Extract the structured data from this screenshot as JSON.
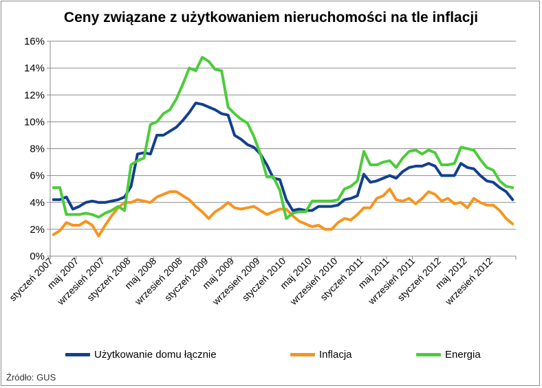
{
  "chart_data": {
    "type": "line",
    "title": "Ceny związane z użytkowaniem nieruchomości na tle inflacji",
    "xlabel": "",
    "ylabel": "",
    "ylim": [
      0,
      16
    ],
    "yticks": [
      "0%",
      "2%",
      "4%",
      "6%",
      "8%",
      "10%",
      "12%",
      "14%",
      "16%"
    ],
    "grid": true,
    "legend": "bottom",
    "x_tick_labels": [
      {
        "index": 0,
        "label": "styczeń 2007"
      },
      {
        "index": 4,
        "label": "maj 2007"
      },
      {
        "index": 8,
        "label": "wrzesień 2007"
      },
      {
        "index": 12,
        "label": "styczeń 2008"
      },
      {
        "index": 16,
        "label": "maj 2008"
      },
      {
        "index": 20,
        "label": "wrzesień 2008"
      },
      {
        "index": 24,
        "label": "styczeń 2009"
      },
      {
        "index": 28,
        "label": "maj 2009"
      },
      {
        "index": 32,
        "label": "wrzesień 2009"
      },
      {
        "index": 36,
        "label": "styczeń 2010"
      },
      {
        "index": 40,
        "label": "maj 2010"
      },
      {
        "index": 44,
        "label": "wrzesień 2010"
      },
      {
        "index": 48,
        "label": "styczeń 2011"
      },
      {
        "index": 52,
        "label": "maj 2011"
      },
      {
        "index": 56,
        "label": "wrzesień 2011"
      },
      {
        "index": 60,
        "label": "styczeń 2012"
      },
      {
        "index": 64,
        "label": "maj 2012"
      },
      {
        "index": 68,
        "label": "wrzesień 2012"
      }
    ],
    "months": 72,
    "series": [
      {
        "name": "Użytkowanie domu łącznie",
        "color": "#123f8f",
        "values": [
          4.2,
          4.2,
          4.4,
          3.5,
          3.7,
          4.0,
          4.1,
          4.0,
          4.0,
          4.1,
          4.2,
          4.4,
          5.2,
          7.6,
          7.7,
          7.6,
          9.0,
          9.0,
          9.3,
          9.6,
          10.1,
          10.7,
          11.4,
          11.3,
          11.1,
          10.9,
          10.6,
          10.5,
          9.0,
          8.7,
          8.3,
          8.1,
          7.6,
          6.8,
          5.8,
          5.7,
          4.2,
          3.4,
          3.5,
          3.4,
          3.4,
          3.7,
          3.7,
          3.7,
          3.8,
          4.2,
          4.3,
          4.5,
          6.1,
          5.5,
          5.6,
          5.8,
          6.0,
          5.8,
          6.3,
          6.6,
          6.7,
          6.7,
          6.9,
          6.7,
          6.0,
          6.0,
          6.0,
          6.9,
          6.6,
          6.5,
          6.0,
          5.6,
          5.5,
          5.1,
          4.8,
          4.2
        ]
      },
      {
        "name": "Inflacja",
        "color": "#f7941d",
        "values": [
          1.6,
          1.9,
          2.5,
          2.3,
          2.3,
          2.6,
          2.3,
          1.5,
          2.3,
          3.0,
          3.6,
          4.0,
          4.0,
          4.2,
          4.1,
          4.0,
          4.4,
          4.6,
          4.8,
          4.8,
          4.5,
          4.2,
          3.7,
          3.3,
          2.8,
          3.3,
          3.6,
          4.0,
          3.6,
          3.5,
          3.6,
          3.7,
          3.4,
          3.1,
          3.3,
          3.5,
          3.5,
          3.0,
          2.6,
          2.4,
          2.2,
          2.3,
          2.0,
          2.0,
          2.5,
          2.8,
          2.7,
          3.1,
          3.6,
          3.6,
          4.3,
          4.5,
          5.0,
          4.2,
          4.1,
          4.3,
          3.9,
          4.3,
          4.8,
          4.6,
          4.1,
          4.3,
          3.9,
          4.0,
          3.6,
          4.3,
          4.0,
          3.8,
          3.8,
          3.4,
          2.8,
          2.4
        ]
      },
      {
        "name": "Energia",
        "color": "#4ccc3a",
        "values": [
          5.1,
          5.1,
          3.1,
          3.1,
          3.1,
          3.2,
          3.1,
          2.9,
          3.2,
          3.4,
          3.7,
          3.4,
          6.8,
          7.1,
          7.3,
          9.8,
          10.0,
          10.6,
          10.9,
          11.7,
          12.8,
          14.0,
          13.8,
          14.8,
          14.5,
          13.9,
          13.8,
          11.1,
          10.6,
          10.2,
          9.9,
          8.9,
          7.6,
          5.9,
          5.9,
          4.9,
          2.8,
          3.2,
          3.3,
          3.3,
          4.1,
          4.1,
          4.1,
          4.1,
          4.2,
          5.0,
          5.2,
          5.6,
          7.8,
          6.8,
          6.8,
          7.0,
          7.1,
          6.6,
          7.3,
          7.8,
          7.9,
          7.6,
          7.9,
          7.7,
          6.8,
          6.8,
          6.9,
          8.1,
          8.0,
          7.9,
          7.2,
          6.6,
          6.4,
          5.6,
          5.2,
          5.1
        ]
      }
    ]
  },
  "source": "Źródło: GUS"
}
